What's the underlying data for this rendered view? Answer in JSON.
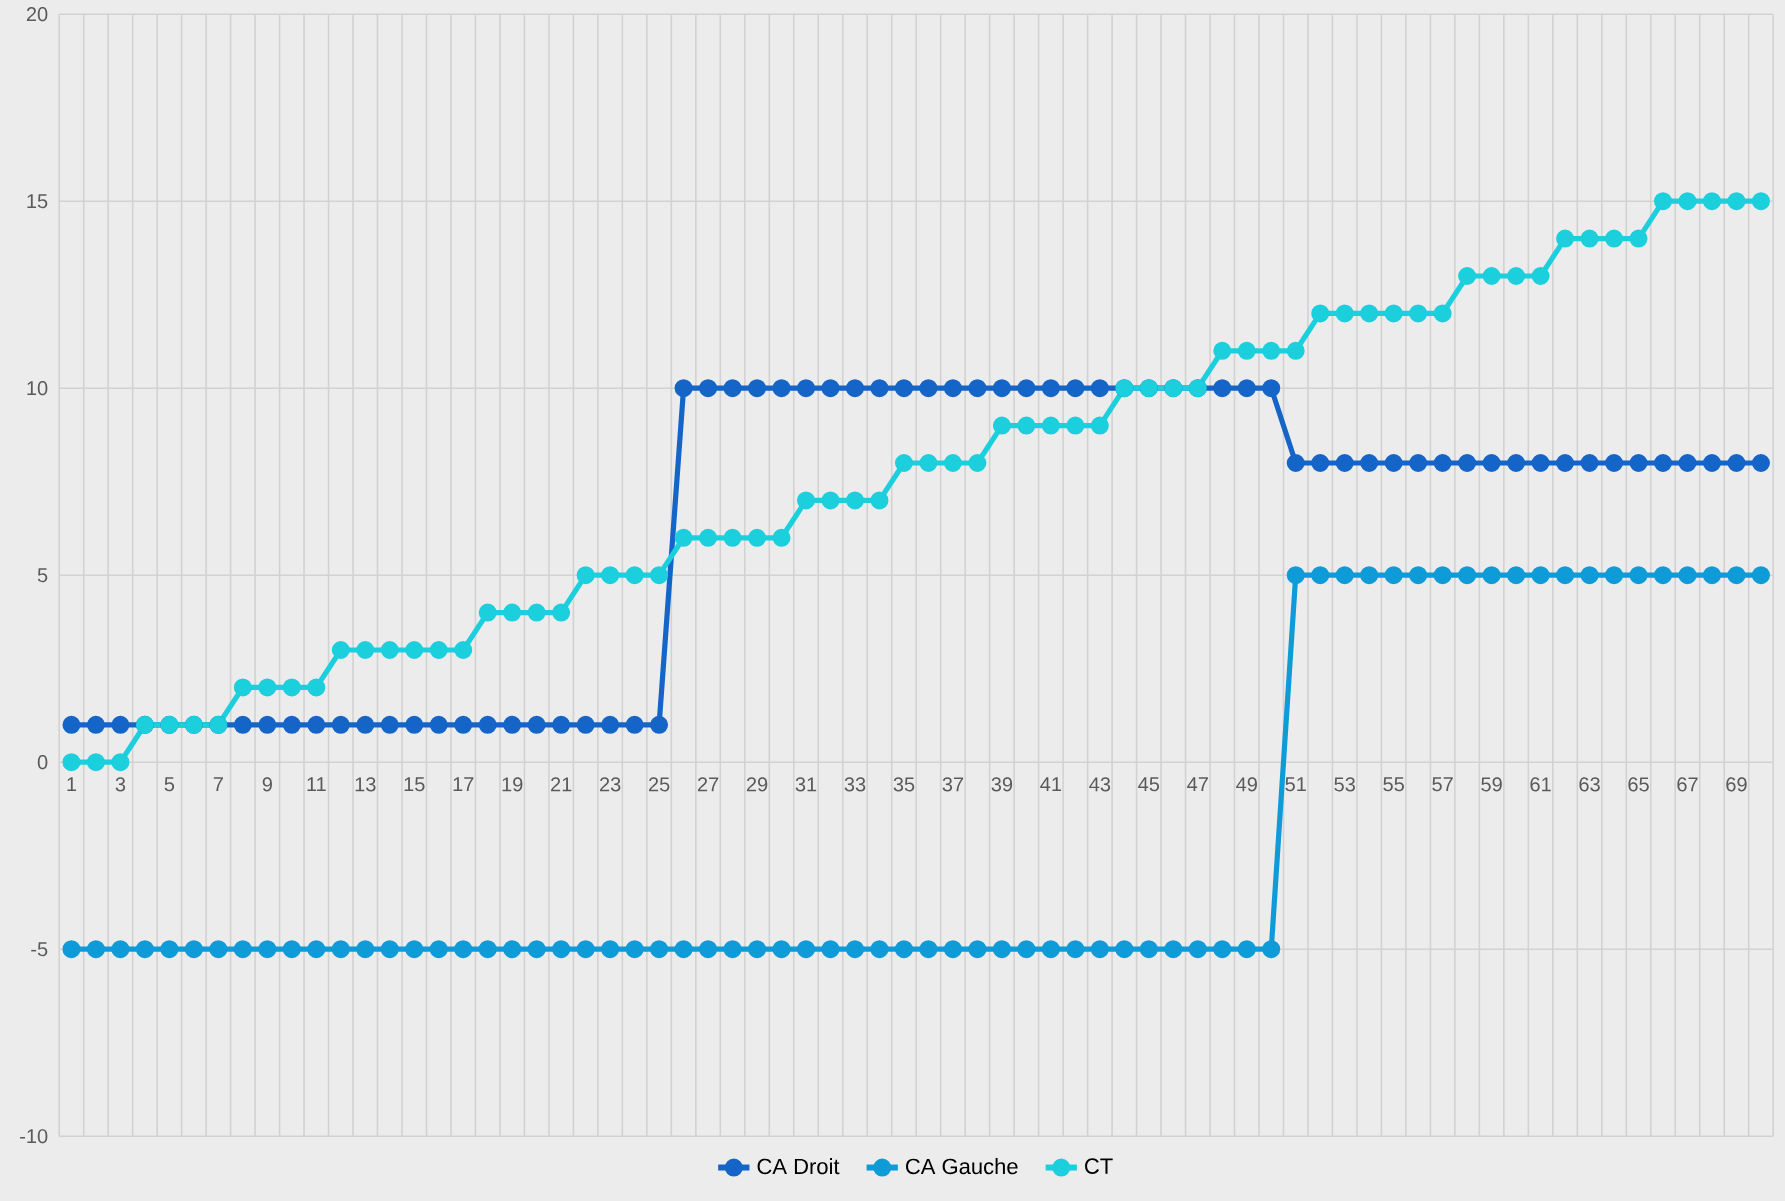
{
  "chart_data": {
    "type": "line",
    "categories": [
      "1",
      null,
      "3",
      null,
      "5",
      null,
      "7",
      null,
      "9",
      null,
      "11",
      null,
      "13",
      null,
      "15",
      null,
      "17",
      null,
      "19",
      null,
      "21",
      null,
      "23",
      null,
      "25",
      null,
      "27",
      null,
      "29",
      null,
      "31",
      null,
      "33",
      null,
      "35",
      null,
      "37",
      null,
      "39",
      null,
      "41",
      null,
      "43",
      null,
      "45",
      null,
      "47",
      null,
      "49",
      null,
      "51",
      null,
      "53",
      null,
      "55",
      null,
      "57",
      null,
      "59",
      null,
      "61",
      null,
      "63",
      null,
      "65",
      null,
      "67",
      null,
      "69",
      null
    ],
    "series": [
      {
        "name": "CA Droit",
        "color": "#1565c8",
        "values": [
          1,
          1,
          1,
          1,
          1,
          1,
          1,
          1,
          1,
          1,
          1,
          1,
          1,
          1,
          1,
          1,
          1,
          1,
          1,
          1,
          1,
          1,
          1,
          1,
          1,
          10,
          10,
          10,
          10,
          10,
          10,
          10,
          10,
          10,
          10,
          10,
          10,
          10,
          10,
          10,
          10,
          10,
          10,
          10,
          10,
          10,
          10,
          10,
          10,
          10,
          8,
          8,
          8,
          8,
          8,
          8,
          8,
          8,
          8,
          8,
          8,
          8,
          8,
          8,
          8,
          8,
          8,
          8,
          8,
          8
        ]
      },
      {
        "name": "CA Gauche",
        "color": "#0e9bd8",
        "values": [
          -5,
          -5,
          -5,
          -5,
          -5,
          -5,
          -5,
          -5,
          -5,
          -5,
          -5,
          -5,
          -5,
          -5,
          -5,
          -5,
          -5,
          -5,
          -5,
          -5,
          -5,
          -5,
          -5,
          -5,
          -5,
          -5,
          -5,
          -5,
          -5,
          -5,
          -5,
          -5,
          -5,
          -5,
          -5,
          -5,
          -5,
          -5,
          -5,
          -5,
          -5,
          -5,
          -5,
          -5,
          -5,
          -5,
          -5,
          -5,
          -5,
          -5,
          5,
          5,
          5,
          5,
          5,
          5,
          5,
          5,
          5,
          5,
          5,
          5,
          5,
          5,
          5,
          5,
          5,
          5,
          5,
          5
        ]
      },
      {
        "name": "CT",
        "color": "#1ccfdc",
        "values": [
          0,
          0,
          0,
          1,
          1,
          1,
          1,
          2,
          2,
          2,
          2,
          3,
          3,
          3,
          3,
          3,
          3,
          4,
          4,
          4,
          4,
          5,
          5,
          5,
          5,
          6,
          6,
          6,
          6,
          6,
          7,
          7,
          7,
          7,
          8,
          8,
          8,
          8,
          9,
          9,
          9,
          9,
          9,
          10,
          10,
          10,
          10,
          11,
          11,
          11,
          11,
          12,
          12,
          12,
          12,
          12,
          12,
          13,
          13,
          13,
          13,
          14,
          14,
          14,
          14,
          15,
          15,
          15,
          15,
          15
        ]
      }
    ],
    "ylim": [
      -10,
      20
    ],
    "yticks": [
      -10,
      -5,
      0,
      5,
      10,
      15,
      20
    ],
    "grid": true,
    "legend": "bottom",
    "marker": "circle",
    "line_style": "solid"
  }
}
